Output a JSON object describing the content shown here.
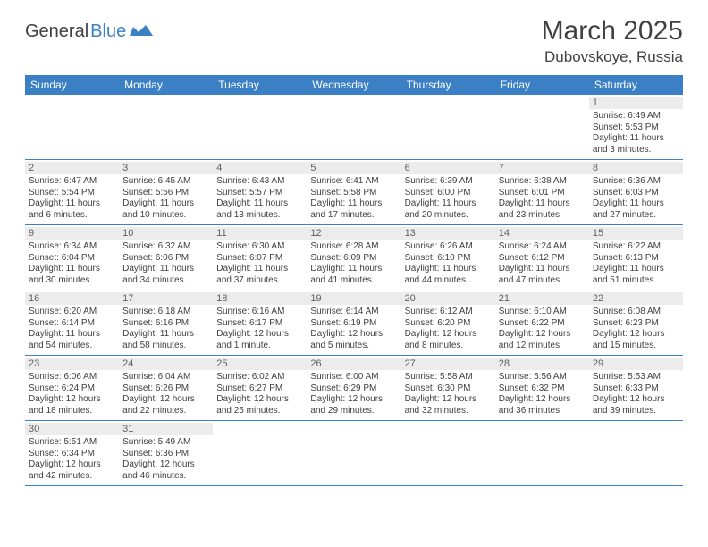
{
  "logo": {
    "general": "General",
    "blue": "Blue"
  },
  "title": "March 2025",
  "location": "Dubovskoye, Russia",
  "colors": {
    "header_bg": "#3b7fc4",
    "header_text": "#ffffff",
    "text": "#404040",
    "daynum_bg": "#ececec",
    "border": "#3b7fc4"
  },
  "weekdays": [
    "Sunday",
    "Monday",
    "Tuesday",
    "Wednesday",
    "Thursday",
    "Friday",
    "Saturday"
  ],
  "weeks": [
    [
      null,
      null,
      null,
      null,
      null,
      null,
      {
        "n": "1",
        "sr": "Sunrise: 6:49 AM",
        "ss": "Sunset: 5:53 PM",
        "dl": "Daylight: 11 hours and 3 minutes."
      }
    ],
    [
      {
        "n": "2",
        "sr": "Sunrise: 6:47 AM",
        "ss": "Sunset: 5:54 PM",
        "dl": "Daylight: 11 hours and 6 minutes."
      },
      {
        "n": "3",
        "sr": "Sunrise: 6:45 AM",
        "ss": "Sunset: 5:56 PM",
        "dl": "Daylight: 11 hours and 10 minutes."
      },
      {
        "n": "4",
        "sr": "Sunrise: 6:43 AM",
        "ss": "Sunset: 5:57 PM",
        "dl": "Daylight: 11 hours and 13 minutes."
      },
      {
        "n": "5",
        "sr": "Sunrise: 6:41 AM",
        "ss": "Sunset: 5:58 PM",
        "dl": "Daylight: 11 hours and 17 minutes."
      },
      {
        "n": "6",
        "sr": "Sunrise: 6:39 AM",
        "ss": "Sunset: 6:00 PM",
        "dl": "Daylight: 11 hours and 20 minutes."
      },
      {
        "n": "7",
        "sr": "Sunrise: 6:38 AM",
        "ss": "Sunset: 6:01 PM",
        "dl": "Daylight: 11 hours and 23 minutes."
      },
      {
        "n": "8",
        "sr": "Sunrise: 6:36 AM",
        "ss": "Sunset: 6:03 PM",
        "dl": "Daylight: 11 hours and 27 minutes."
      }
    ],
    [
      {
        "n": "9",
        "sr": "Sunrise: 6:34 AM",
        "ss": "Sunset: 6:04 PM",
        "dl": "Daylight: 11 hours and 30 minutes."
      },
      {
        "n": "10",
        "sr": "Sunrise: 6:32 AM",
        "ss": "Sunset: 6:06 PM",
        "dl": "Daylight: 11 hours and 34 minutes."
      },
      {
        "n": "11",
        "sr": "Sunrise: 6:30 AM",
        "ss": "Sunset: 6:07 PM",
        "dl": "Daylight: 11 hours and 37 minutes."
      },
      {
        "n": "12",
        "sr": "Sunrise: 6:28 AM",
        "ss": "Sunset: 6:09 PM",
        "dl": "Daylight: 11 hours and 41 minutes."
      },
      {
        "n": "13",
        "sr": "Sunrise: 6:26 AM",
        "ss": "Sunset: 6:10 PM",
        "dl": "Daylight: 11 hours and 44 minutes."
      },
      {
        "n": "14",
        "sr": "Sunrise: 6:24 AM",
        "ss": "Sunset: 6:12 PM",
        "dl": "Daylight: 11 hours and 47 minutes."
      },
      {
        "n": "15",
        "sr": "Sunrise: 6:22 AM",
        "ss": "Sunset: 6:13 PM",
        "dl": "Daylight: 11 hours and 51 minutes."
      }
    ],
    [
      {
        "n": "16",
        "sr": "Sunrise: 6:20 AM",
        "ss": "Sunset: 6:14 PM",
        "dl": "Daylight: 11 hours and 54 minutes."
      },
      {
        "n": "17",
        "sr": "Sunrise: 6:18 AM",
        "ss": "Sunset: 6:16 PM",
        "dl": "Daylight: 11 hours and 58 minutes."
      },
      {
        "n": "18",
        "sr": "Sunrise: 6:16 AM",
        "ss": "Sunset: 6:17 PM",
        "dl": "Daylight: 12 hours and 1 minute."
      },
      {
        "n": "19",
        "sr": "Sunrise: 6:14 AM",
        "ss": "Sunset: 6:19 PM",
        "dl": "Daylight: 12 hours and 5 minutes."
      },
      {
        "n": "20",
        "sr": "Sunrise: 6:12 AM",
        "ss": "Sunset: 6:20 PM",
        "dl": "Daylight: 12 hours and 8 minutes."
      },
      {
        "n": "21",
        "sr": "Sunrise: 6:10 AM",
        "ss": "Sunset: 6:22 PM",
        "dl": "Daylight: 12 hours and 12 minutes."
      },
      {
        "n": "22",
        "sr": "Sunrise: 6:08 AM",
        "ss": "Sunset: 6:23 PM",
        "dl": "Daylight: 12 hours and 15 minutes."
      }
    ],
    [
      {
        "n": "23",
        "sr": "Sunrise: 6:06 AM",
        "ss": "Sunset: 6:24 PM",
        "dl": "Daylight: 12 hours and 18 minutes."
      },
      {
        "n": "24",
        "sr": "Sunrise: 6:04 AM",
        "ss": "Sunset: 6:26 PM",
        "dl": "Daylight: 12 hours and 22 minutes."
      },
      {
        "n": "25",
        "sr": "Sunrise: 6:02 AM",
        "ss": "Sunset: 6:27 PM",
        "dl": "Daylight: 12 hours and 25 minutes."
      },
      {
        "n": "26",
        "sr": "Sunrise: 6:00 AM",
        "ss": "Sunset: 6:29 PM",
        "dl": "Daylight: 12 hours and 29 minutes."
      },
      {
        "n": "27",
        "sr": "Sunrise: 5:58 AM",
        "ss": "Sunset: 6:30 PM",
        "dl": "Daylight: 12 hours and 32 minutes."
      },
      {
        "n": "28",
        "sr": "Sunrise: 5:56 AM",
        "ss": "Sunset: 6:32 PM",
        "dl": "Daylight: 12 hours and 36 minutes."
      },
      {
        "n": "29",
        "sr": "Sunrise: 5:53 AM",
        "ss": "Sunset: 6:33 PM",
        "dl": "Daylight: 12 hours and 39 minutes."
      }
    ],
    [
      {
        "n": "30",
        "sr": "Sunrise: 5:51 AM",
        "ss": "Sunset: 6:34 PM",
        "dl": "Daylight: 12 hours and 42 minutes."
      },
      {
        "n": "31",
        "sr": "Sunrise: 5:49 AM",
        "ss": "Sunset: 6:36 PM",
        "dl": "Daylight: 12 hours and 46 minutes."
      },
      null,
      null,
      null,
      null,
      null
    ]
  ]
}
